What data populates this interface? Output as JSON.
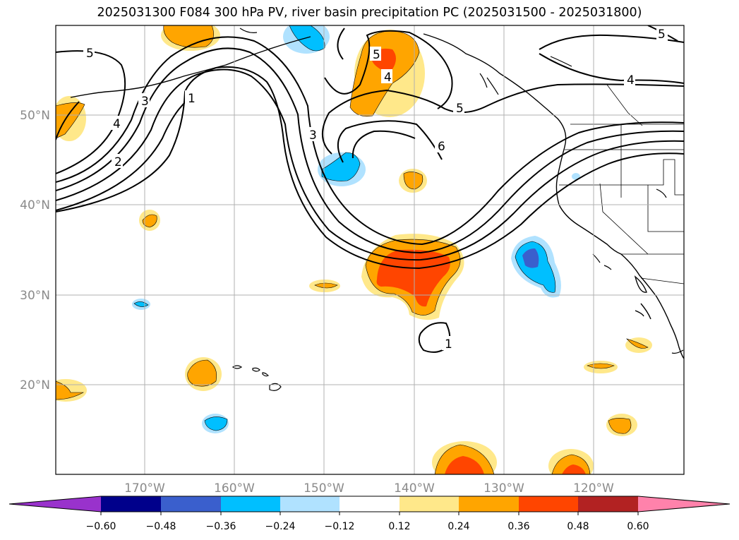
{
  "title": "2025031300 F084 300 hPa PV, river basin precipitation PC (2025031500 - 2025031800)",
  "lat_labels": [
    "50°N",
    "40°N",
    "30°N",
    "20°N"
  ],
  "lon_labels": [
    "170°W",
    "160°W",
    "150°W",
    "140°W",
    "130°W",
    "120°W"
  ],
  "colorbar": {
    "ticks": [
      "−0.60",
      "−0.48",
      "−0.36",
      "−0.24",
      "−0.12",
      "0.12",
      "0.24",
      "0.36",
      "0.48",
      "0.60"
    ],
    "colors": [
      "#9932cc",
      "#00008b",
      "#3a5fcd",
      "#00bfff",
      "#b0e2ff",
      "#ffffff",
      "#ffe88a",
      "#ffa500",
      "#ff4500",
      "#b22222",
      "#ff82ab"
    ]
  },
  "pv_contour_labels": [
    "5",
    "4",
    "3",
    "2",
    "1",
    "5",
    "4",
    "3",
    "6",
    "5",
    "4",
    "5",
    "1"
  ],
  "colors": {
    "orange": "#ffa500",
    "red_orange": "#ff4500",
    "light_yellow": "#ffe88a",
    "deep_sky_blue": "#00bfff",
    "light_blue": "#b0e2ff",
    "royal_blue": "#3a5fcd",
    "grid": "#b0b0b0"
  }
}
